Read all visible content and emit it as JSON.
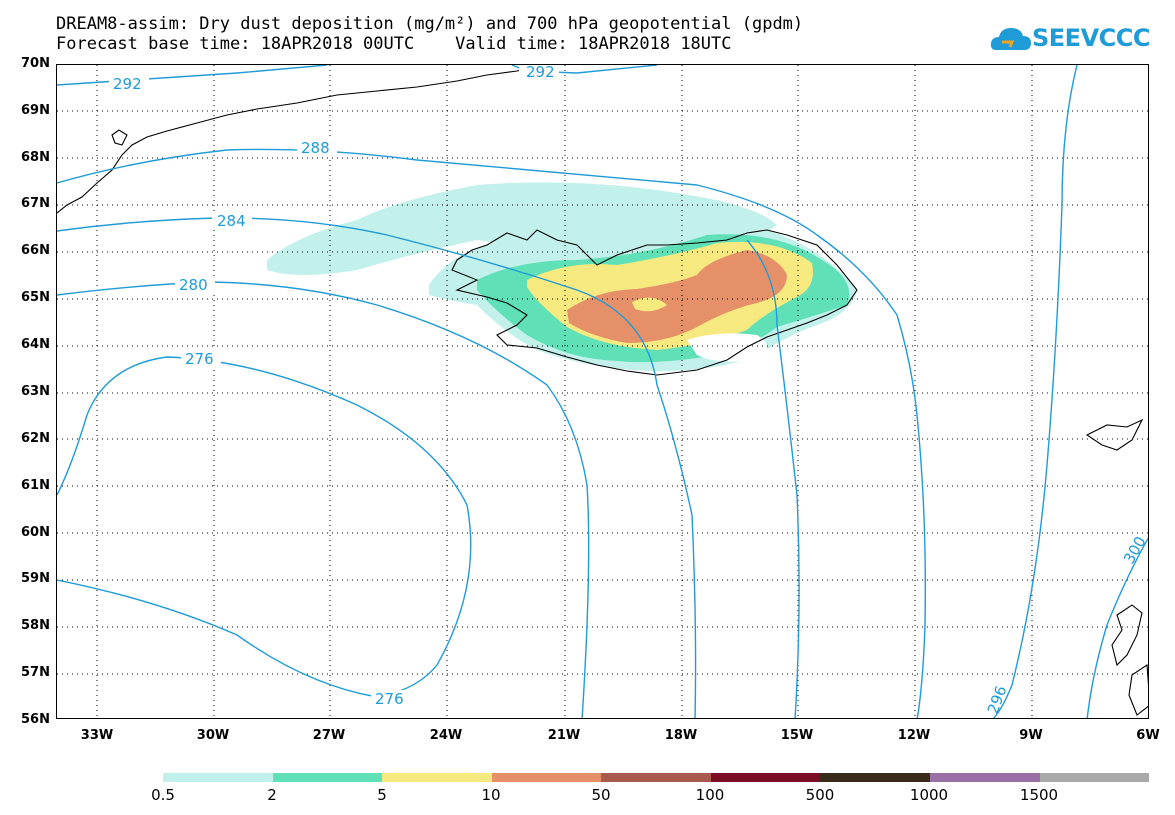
{
  "header": {
    "title_line1": "DREAM8-assim: Dry dust deposition (mg/m²) and 700 hPa geopotential (gpdm)",
    "title_line2": "Forecast base time: 18APR2018 00UTC    Valid time: 18APR2018 18UTC"
  },
  "logo": {
    "text": "SEEVCCC",
    "color": "#1f9bd7"
  },
  "axes": {
    "lat_labels": [
      "70N",
      "69N",
      "68N",
      "67N",
      "66N",
      "65N",
      "64N",
      "63N",
      "62N",
      "61N",
      "60N",
      "59N",
      "58N",
      "57N",
      "56N"
    ],
    "lon_labels": [
      "33W",
      "30W",
      "27W",
      "24W",
      "21W",
      "18W",
      "15W",
      "12W",
      "9W",
      "6W"
    ]
  },
  "contour_labels": [
    "292",
    "292",
    "288",
    "284",
    "280",
    "276",
    "276",
    "296",
    "300"
  ],
  "colors": {
    "contour": "#1f9bd7",
    "coast": "#000000"
  },
  "legend": {
    "colors": [
      "#c2f0ea",
      "#5fe0b7",
      "#f5e97f",
      "#e59069",
      "#a85a4c",
      "#7a0e23",
      "#3a2a1a",
      "#9a6fa5",
      "#a9a9a9"
    ],
    "labels": [
      "0.5",
      "2",
      "5",
      "10",
      "50",
      "100",
      "500",
      "1000",
      "1500"
    ]
  }
}
